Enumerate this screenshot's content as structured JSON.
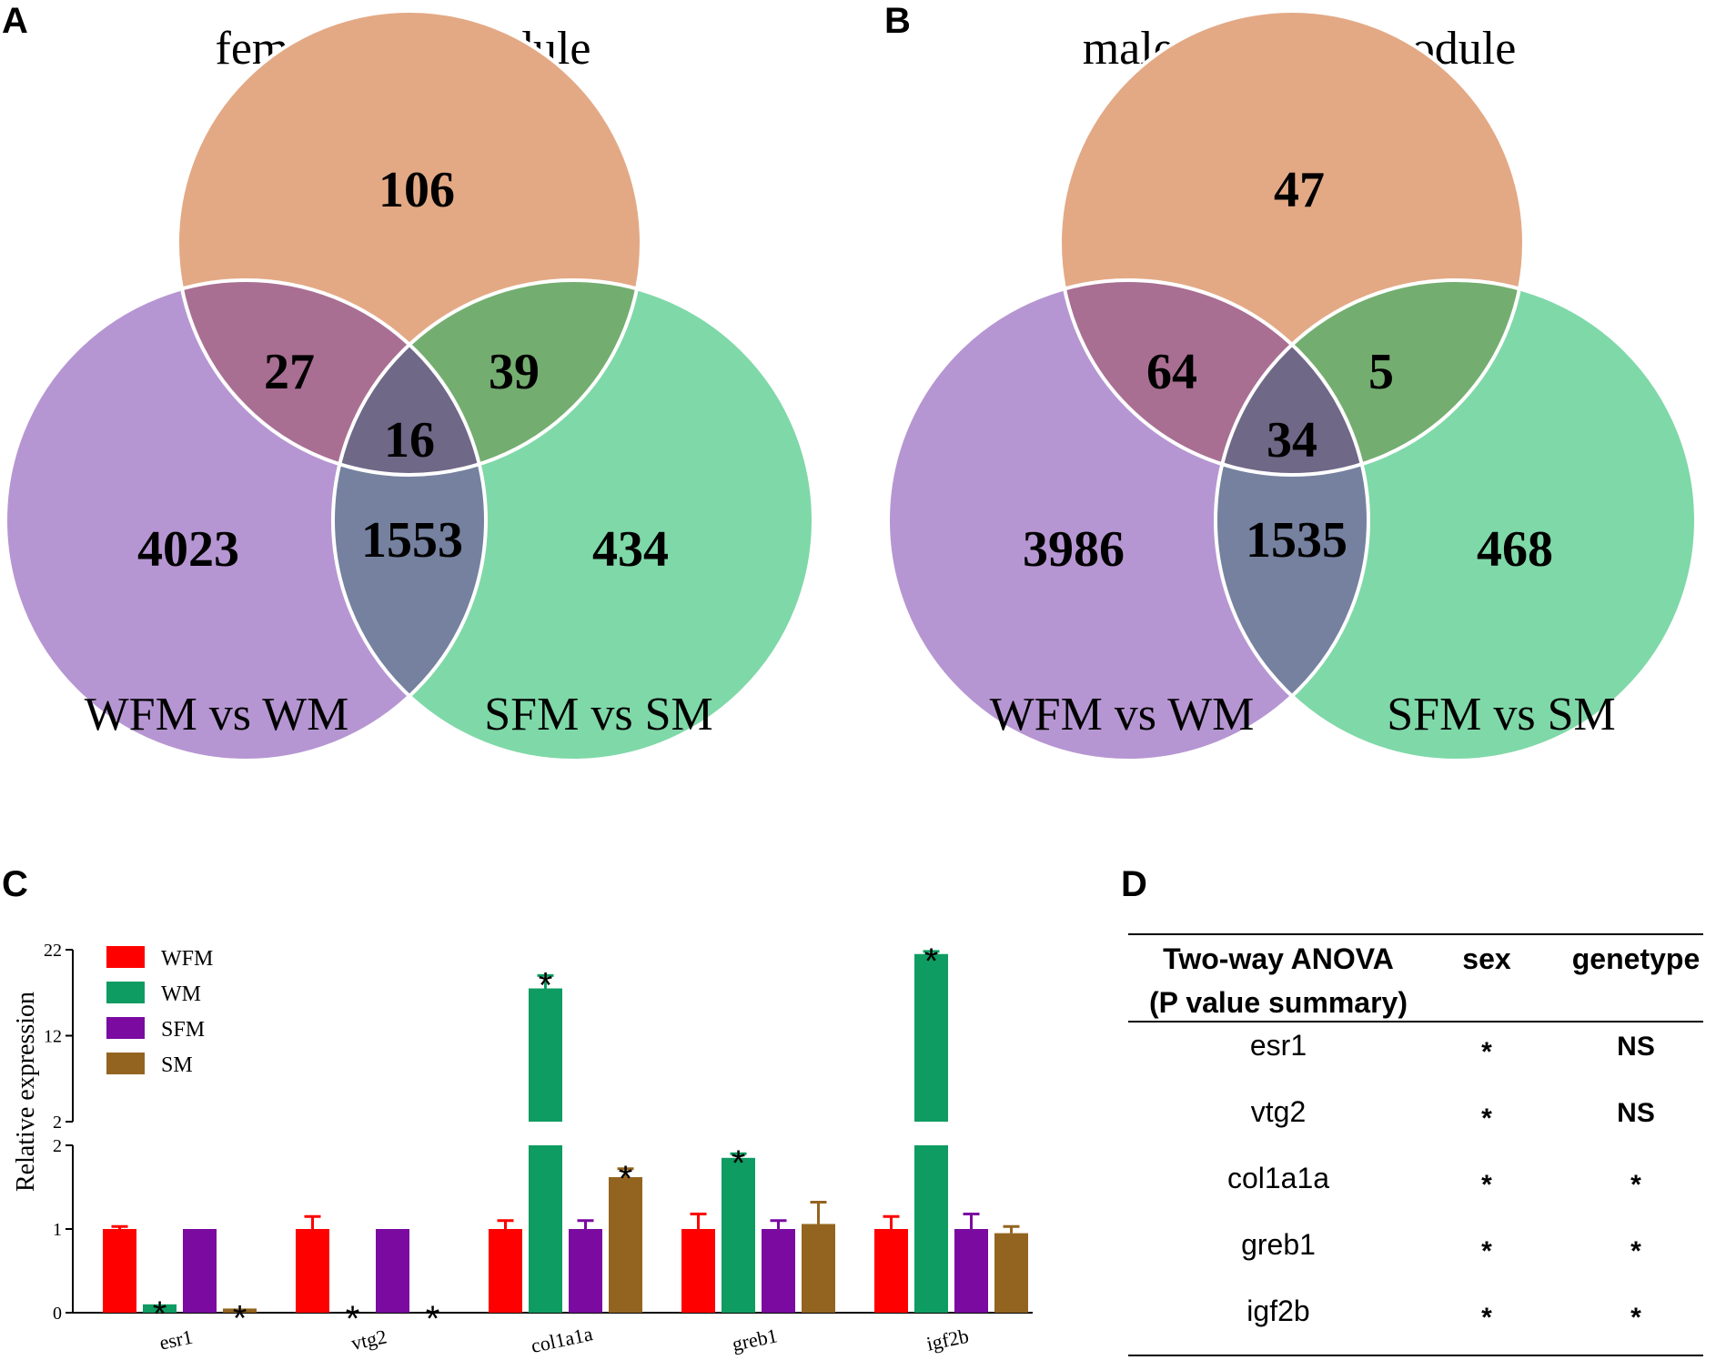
{
  "panels": {
    "a": "A",
    "b": "B",
    "c": "C",
    "d": "D"
  },
  "colors": {
    "top_circle": "#e3a985",
    "left_circle": "#b696d2",
    "right_circle": "#7fd8a8",
    "top_left": "#a96f93",
    "top_right": "#74ad70",
    "left_right": "#75819f",
    "center": "#6f6887",
    "WFM": "#ff0000",
    "WM": "#0e9c62",
    "SFM": "#7a0aa0",
    "SM": "#936420"
  },
  "venns": [
    {
      "title": "female blue module",
      "counts": {
        "top": "106",
        "top_left": "27",
        "top_right": "39",
        "center": "16",
        "left": "4023",
        "left_right": "1553",
        "right": "434"
      },
      "left_label": "WFM vs WM",
      "right_label": "SFM vs SM"
    },
    {
      "title": "male turquoise module",
      "counts": {
        "top": "47",
        "top_left": "64",
        "top_right": "5",
        "center": "34",
        "left": "3986",
        "left_right": "1535",
        "right": "468"
      },
      "left_label": "WFM vs WM",
      "right_label": "SFM vs SM"
    }
  ],
  "chart_data": {
    "type": "bar",
    "ylabel": "Relative expression",
    "categories": [
      "esr1",
      "vtg2",
      "col1a1a",
      "greb1",
      "igf2b"
    ],
    "broken_axis": {
      "lower_range": [
        0,
        2
      ],
      "upper_range": [
        2,
        22
      ]
    },
    "yticks_lower": [
      "0",
      "1",
      "2"
    ],
    "yticks_upper": [
      "2",
      "12",
      "22"
    ],
    "series": [
      {
        "name": "WFM",
        "values": [
          1.0,
          1.0,
          1.0,
          1.0,
          1.0
        ],
        "errors": [
          0.03,
          0.15,
          0.1,
          0.18,
          0.15
        ],
        "sig": [
          false,
          false,
          false,
          false,
          false
        ]
      },
      {
        "name": "WM",
        "values": [
          0.1,
          0.0,
          17.5,
          1.85,
          21.5
        ],
        "errors": [
          0.0,
          0.0,
          1.5,
          0.05,
          0.3
        ],
        "sig": [
          true,
          true,
          true,
          true,
          true
        ]
      },
      {
        "name": "SFM",
        "values": [
          1.0,
          1.0,
          1.0,
          1.0,
          1.0
        ],
        "errors": [
          0.0,
          0.0,
          0.1,
          0.1,
          0.18
        ],
        "sig": [
          false,
          false,
          false,
          false,
          false
        ]
      },
      {
        "name": "SM",
        "values": [
          0.05,
          0.0,
          1.62,
          1.06,
          0.95
        ],
        "errors": [
          0.0,
          0.0,
          0.1,
          0.26,
          0.08
        ],
        "sig": [
          true,
          true,
          true,
          false,
          false
        ]
      }
    ],
    "sig_symbol": "*"
  },
  "table": {
    "headers": [
      "Two-way ANOVA",
      "(P value summary)",
      "sex",
      "genetype"
    ],
    "rows": [
      {
        "gene": "esr1",
        "sex": "*",
        "genetype": "NS"
      },
      {
        "gene": "vtg2",
        "sex": "*",
        "genetype": "NS"
      },
      {
        "gene": "col1a1a",
        "sex": "*",
        "genetype": "*"
      },
      {
        "gene": "greb1",
        "sex": "*",
        "genetype": "*"
      },
      {
        "gene": "igf2b",
        "sex": "*",
        "genetype": "*"
      }
    ]
  }
}
